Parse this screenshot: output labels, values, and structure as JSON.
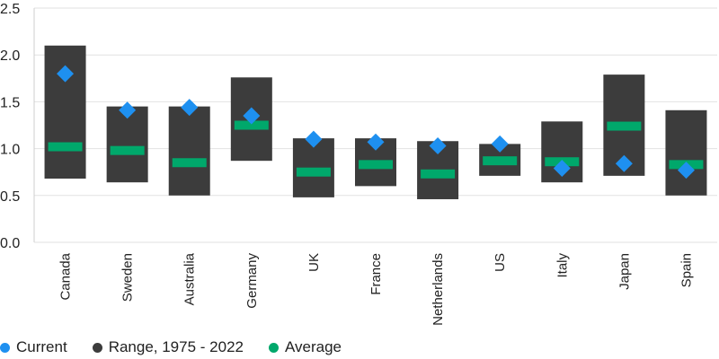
{
  "chart_data": {
    "type": "range-dot",
    "title": "",
    "xlabel": "",
    "ylabel": "",
    "ylim": [
      0,
      2.5
    ],
    "yticks": [
      "0.0",
      "0.5",
      "1.0",
      "1.5",
      "2.0",
      "2.5"
    ],
    "grid": true,
    "legend_position": "bottom-left",
    "categories": [
      "Canada",
      "Sweden",
      "Australia",
      "Germany",
      "UK",
      "France",
      "Netherlands",
      "US",
      "Italy",
      "Japan",
      "Spain"
    ],
    "series": [
      {
        "name": "Current",
        "color": "#1e90f0",
        "values": [
          1.8,
          1.41,
          1.44,
          1.35,
          1.1,
          1.07,
          1.03,
          1.05,
          0.79,
          0.84,
          0.77
        ]
      },
      {
        "name": "Range, 1975 - 2022",
        "color": "#3c3c3c",
        "min": [
          0.68,
          0.64,
          0.5,
          0.87,
          0.48,
          0.6,
          0.46,
          0.71,
          0.64,
          0.71,
          0.5
        ],
        "max": [
          2.1,
          1.45,
          1.45,
          1.76,
          1.11,
          1.11,
          1.08,
          1.05,
          1.29,
          1.79,
          1.41
        ]
      },
      {
        "name": "Average",
        "color": "#00a86b",
        "values": [
          1.02,
          0.98,
          0.85,
          1.25,
          0.75,
          0.83,
          0.73,
          0.87,
          0.86,
          1.24,
          0.83
        ]
      }
    ]
  }
}
